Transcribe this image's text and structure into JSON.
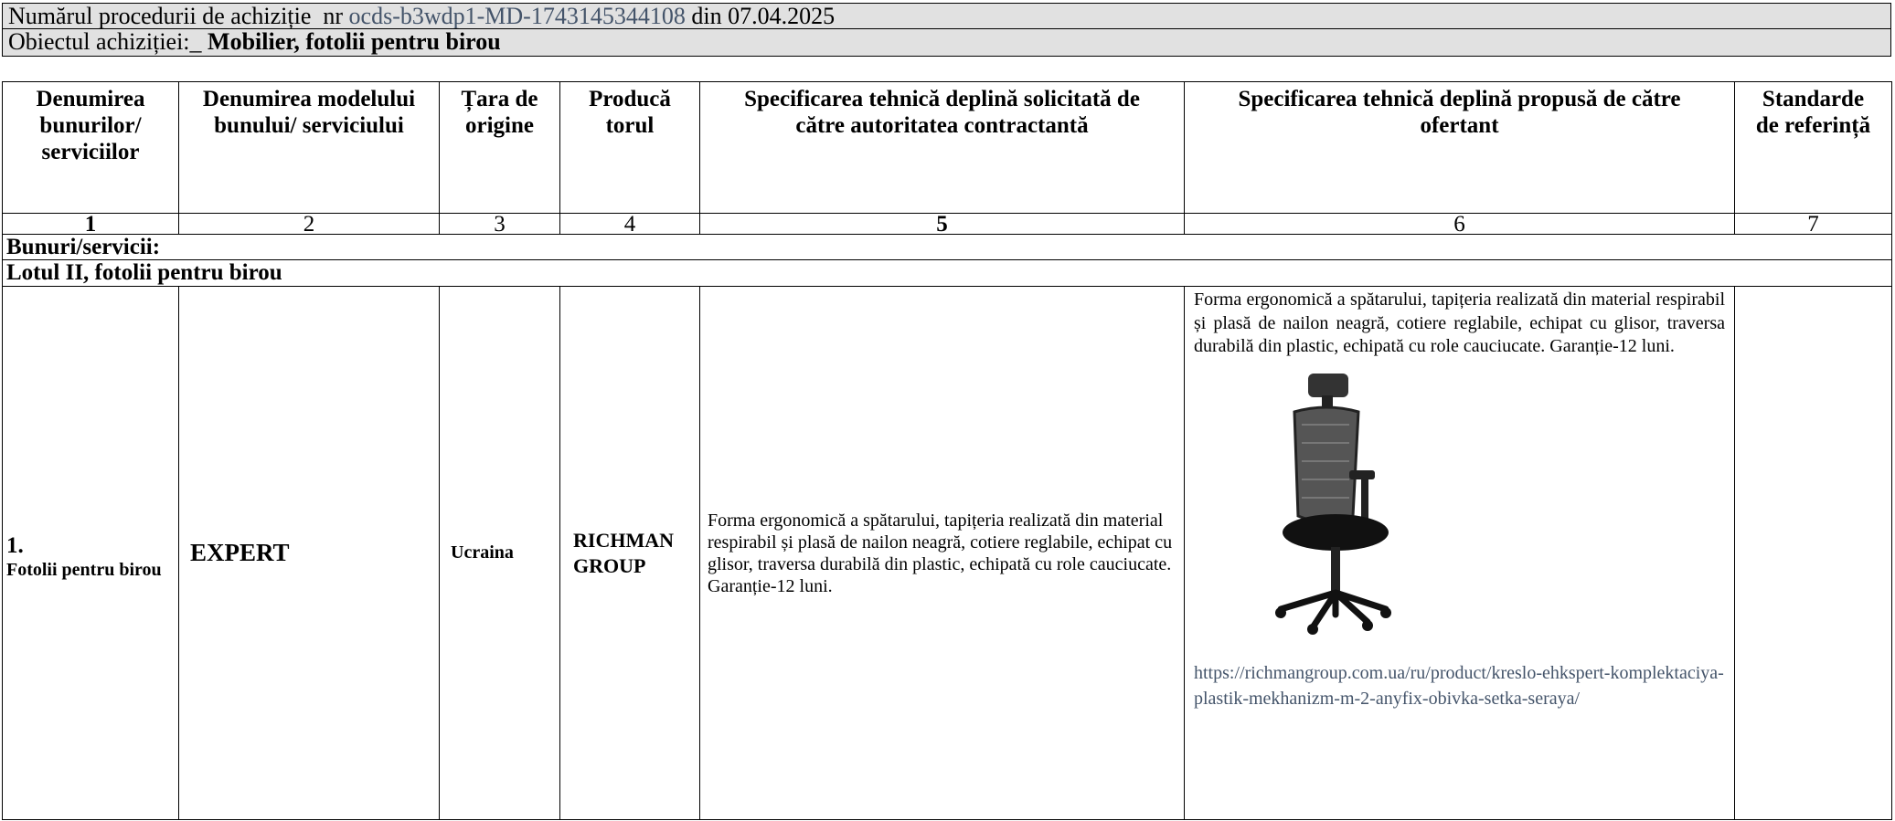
{
  "header": {
    "procedure_label": "Numărul procedurii de achiziție  nr",
    "procedure_id": "ocds-b3wdp1-MD-1743145344108",
    "procedure_date": "din 07.04.2025",
    "object_label": "Obiectul achiziției:_",
    "object_value": "Mobilier, fotolii pentru birou"
  },
  "table": {
    "columns": [
      "Denumirea bunurilor/ serviciilor",
      "Denumirea modelului bunului/ serviciului",
      "Țara de origine",
      "Producă torul",
      "Specificarea tehnică deplină solicitată de către autoritatea contractantă",
      "Specificarea tehnică deplină propusă de către ofertant",
      "Standarde de referință"
    ],
    "column_numbers": [
      "1",
      "2",
      "3",
      "4",
      "5",
      "6",
      "7"
    ],
    "section": "Bunuri/servicii:",
    "lot": "Lotul II, fotolii pentru birou",
    "rows": [
      {
        "number": "1.",
        "name": "Fotolii pentru birou",
        "model": "EXPERT",
        "country": "Ucraina",
        "producer": "RICHMAN GROUP",
        "requested_spec": "Forma ergonomică a spătarului, tapițeria realizată din material respirabil și plasă de nailon neagră, cotiere reglabile, echipat cu glisor, traversa durabilă din plastic, echipată cu role cauciucate. Garanție-12 luni.",
        "offered_spec": "Forma ergonomică a spătarului, tapițeria realizată din material respirabil și plasă de nailon neagră, cotiere reglabile, echipat cu glisor, traversa durabilă din plastic, echipată cu role cauciucate. Garanție-12 luni.",
        "offered_url": "https://richmangroup.com.ua/ru/product/kreslo-ehkspert-komplektaciya-plastik-mekhanizm-m-2-anyfix-obivka-setka-seraya/"
      }
    ]
  }
}
